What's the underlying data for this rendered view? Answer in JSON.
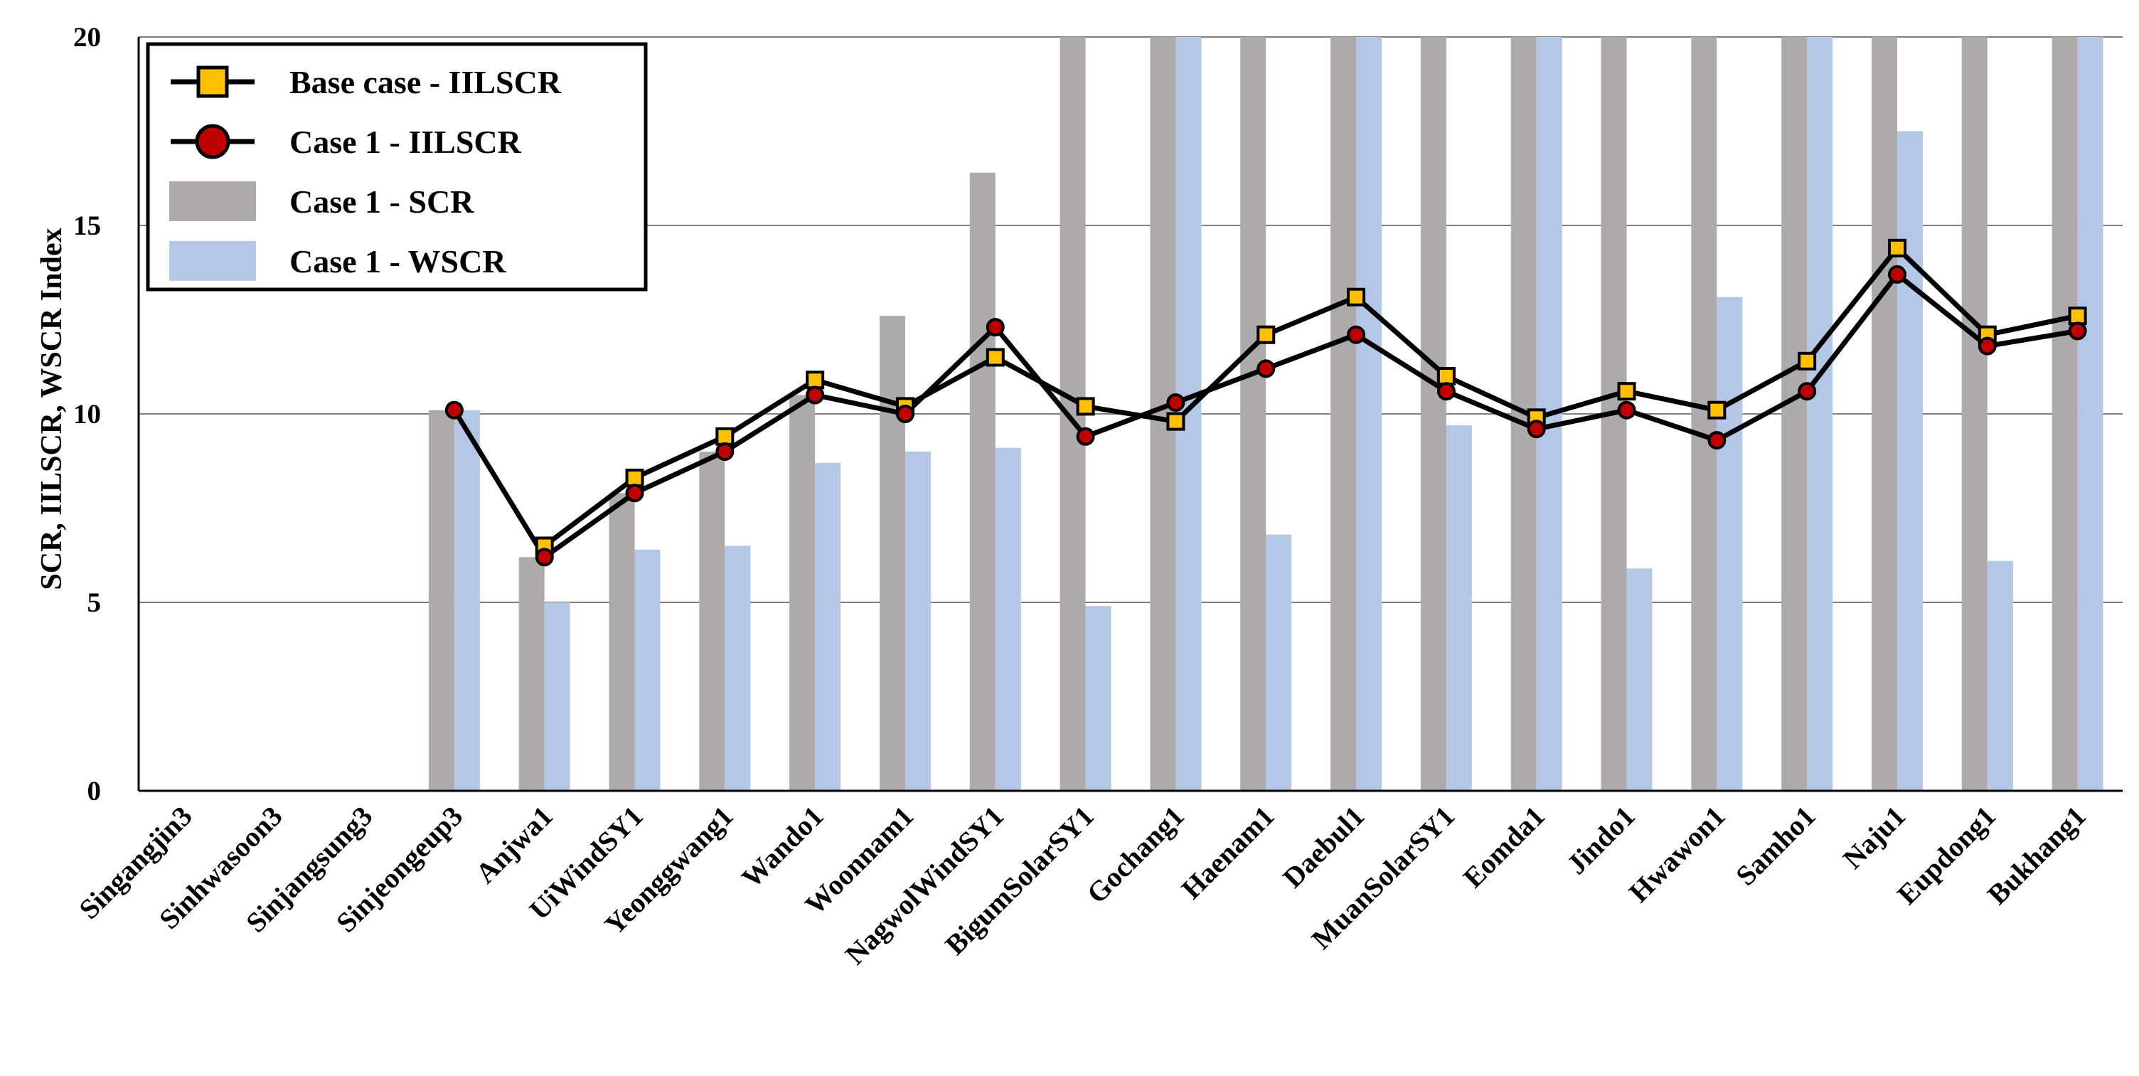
{
  "chart_data": {
    "type": "bar",
    "title": "",
    "xlabel": "",
    "ylabel": "SCR, IILSCR, WSCR Index",
    "ylim": [
      0,
      20
    ],
    "yticks": [
      0,
      5,
      10,
      15,
      20
    ],
    "grid": true,
    "legend_position": "top-left",
    "categories": [
      "Singangjin3",
      "Sinhwasoon3",
      "Sinjangsung3",
      "Sinjeongeup3",
      "Anjwa1",
      "UiWindSY1",
      "Yeonggwang1",
      "Wando1",
      "Woonnam1",
      "NagwolWindSY1",
      "BigumSolarSY1",
      "Gochang1",
      "Haenam1",
      "Daebul1",
      "MuanSolarSY1",
      "Eomda1",
      "Jindo1",
      "Hwawon1",
      "Samho1",
      "Naju1",
      "Eupdong1",
      "Bukhang1"
    ],
    "series": [
      {
        "name": "Base case - IILSCR",
        "kind": "line",
        "marker": "square",
        "color": "#ffc000",
        "values": [
          null,
          null,
          null,
          null,
          6.5,
          8.3,
          9.4,
          10.9,
          10.2,
          11.5,
          10.2,
          9.8,
          12.1,
          13.1,
          11.0,
          9.9,
          10.6,
          10.1,
          11.4,
          14.4,
          12.1,
          12.6
        ]
      },
      {
        "name": "Case 1 - IILSCR",
        "kind": "line",
        "marker": "circle",
        "color": "#c00000",
        "values": [
          null,
          null,
          null,
          10.1,
          6.2,
          7.9,
          9.0,
          10.5,
          10.0,
          12.3,
          9.4,
          10.3,
          11.2,
          12.1,
          10.6,
          9.6,
          10.1,
          9.3,
          10.6,
          13.7,
          11.8,
          12.2
        ]
      },
      {
        "name": "Case 1 - SCR",
        "kind": "bar",
        "color": "#aeaaaa",
        "values": [
          null,
          null,
          null,
          10.1,
          6.2,
          7.9,
          9.0,
          10.5,
          12.6,
          16.4,
          20,
          20,
          20,
          20,
          20,
          20,
          20,
          20,
          20,
          20,
          20,
          20
        ]
      },
      {
        "name": "Case 1 - WSCR",
        "kind": "bar",
        "color": "#b4c7e7",
        "values": [
          null,
          null,
          null,
          10.1,
          5.0,
          6.4,
          6.5,
          8.7,
          9.0,
          9.1,
          4.9,
          20,
          6.8,
          20,
          9.7,
          20,
          5.9,
          13.1,
          20,
          17.5,
          6.1,
          20
        ]
      }
    ]
  }
}
